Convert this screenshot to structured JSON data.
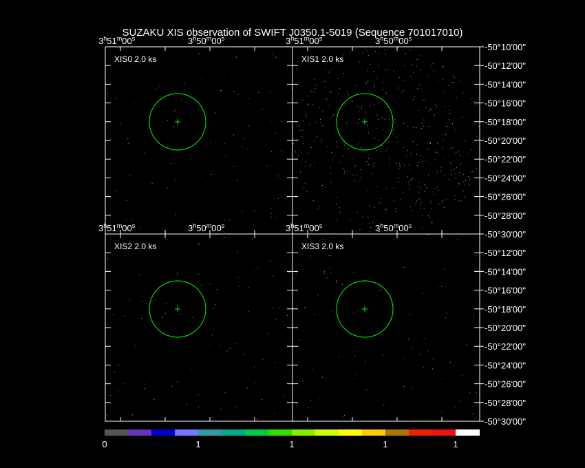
{
  "title": "SUZAKU XIS observation of SWIFT J0350.1-5019  (Sequence 701017010)",
  "panels": [
    {
      "label": "XIS0 2.0 ks",
      "ra_labels": [
        "3h51m00s",
        "3h50m00s"
      ]
    },
    {
      "label": "XIS1 2.0 ks",
      "ra_labels": [
        "3h51m00s",
        "3h50m00s"
      ]
    },
    {
      "label": "XIS2 2.0 ks",
      "ra_labels": [
        "3h51m00s",
        "3h50m00s"
      ]
    },
    {
      "label": "XIS3 2.0 ks",
      "ra_labels": [
        "3h51m00s",
        "3h50m00s"
      ]
    }
  ],
  "dec_labels_top": [
    "-50°10'00\"",
    "-50°12'00\"",
    "-50°14'00\"",
    "-50°16'00\"",
    "-50°18'00\"",
    "-50°20'00\"",
    "-50°22'00\"",
    "-50°24'00\"",
    "-50°26'00\"",
    "-50°28'00\"",
    "-50°30'00\""
  ],
  "dec_labels_bottom": [
    "-50°12'00\"",
    "-50°14'00\"",
    "-50°16'00\"",
    "-50°18'00\"",
    "-50°20'00\"",
    "-50°22'00\"",
    "-50°24'00\"",
    "-50°26'00\"",
    "-50°28'00\"",
    "-50°30'00\""
  ],
  "colorbar_labels": [
    "0",
    "1",
    "1",
    "1",
    "1"
  ]
}
